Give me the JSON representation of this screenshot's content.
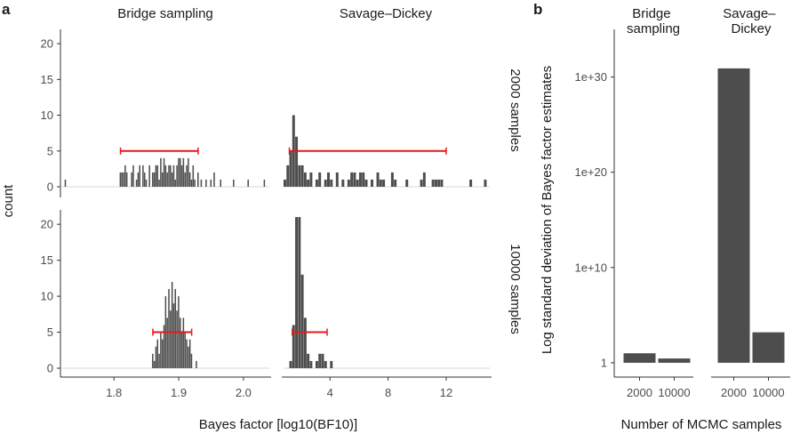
{
  "figure": {
    "panel_a_label": "a",
    "panel_b_label": "b",
    "shared_ylabel": "count",
    "shared_xlabel": "Bayes factor [log10(BF10)]"
  },
  "chart_data": [
    {
      "type": "histogram",
      "panel": "a",
      "column_titles": [
        "Bridge sampling",
        "Savage–Dickey"
      ],
      "row_titles": [
        "2000 samples",
        "10000 samples"
      ],
      "ylabel": "count",
      "xlabel": "Bayes factor [log10(BF10)]",
      "ylim": [
        0,
        22
      ],
      "yticks": [
        "0",
        "5",
        "10",
        "15",
        "20"
      ],
      "facets": [
        {
          "name": "bridge-2000",
          "method": "Bridge sampling",
          "samples": "2000 samples",
          "xlim": [
            1.72,
            2.04
          ],
          "bin_width": 0.0025,
          "error_bar": {
            "center": 1.87,
            "low": 1.81,
            "high": 1.93,
            "y": 5
          },
          "bins": [
            [
              1.725,
              1
            ],
            [
              1.81,
              2
            ],
            [
              1.8125,
              2
            ],
            [
              1.815,
              2
            ],
            [
              1.8175,
              3
            ],
            [
              1.82,
              2
            ],
            [
              1.8275,
              2
            ],
            [
              1.83,
              3
            ],
            [
              1.835,
              1
            ],
            [
              1.8375,
              2
            ],
            [
              1.84,
              3
            ],
            [
              1.845,
              3
            ],
            [
              1.8475,
              2
            ],
            [
              1.85,
              1
            ],
            [
              1.855,
              3
            ],
            [
              1.86,
              2
            ],
            [
              1.8625,
              2
            ],
            [
              1.865,
              3
            ],
            [
              1.8675,
              3
            ],
            [
              1.87,
              1
            ],
            [
              1.8725,
              4
            ],
            [
              1.875,
              2
            ],
            [
              1.8775,
              4
            ],
            [
              1.88,
              3
            ],
            [
              1.8825,
              2
            ],
            [
              1.885,
              3
            ],
            [
              1.8875,
              3
            ],
            [
              1.89,
              2
            ],
            [
              1.8925,
              3
            ],
            [
              1.895,
              1
            ],
            [
              1.8975,
              3
            ],
            [
              1.9,
              4
            ],
            [
              1.9025,
              4
            ],
            [
              1.905,
              3
            ],
            [
              1.9075,
              4
            ],
            [
              1.91,
              2
            ],
            [
              1.9125,
              3
            ],
            [
              1.915,
              4
            ],
            [
              1.9175,
              2
            ],
            [
              1.92,
              1
            ],
            [
              1.9225,
              3
            ],
            [
              1.925,
              1
            ],
            [
              1.93,
              2
            ],
            [
              1.935,
              1
            ],
            [
              1.9425,
              1
            ],
            [
              1.95,
              1
            ],
            [
              1.955,
              2
            ],
            [
              1.965,
              1
            ],
            [
              1.985,
              1
            ],
            [
              2.0075,
              1
            ],
            [
              2.0325,
              1
            ]
          ]
        },
        {
          "name": "savage-2000",
          "method": "Savage–Dickey",
          "samples": "2000 samples",
          "xlim": [
            0.8,
            15.0
          ],
          "bin_width": 0.2,
          "error_bar": {
            "center": 1.6,
            "low": 1.2,
            "high": 12.0,
            "y": 5
          },
          "bins": [
            [
              0.9,
              1
            ],
            [
              1.1,
              3
            ],
            [
              1.3,
              5
            ],
            [
              1.5,
              10
            ],
            [
              1.7,
              7
            ],
            [
              1.9,
              3
            ],
            [
              2.1,
              3
            ],
            [
              2.3,
              2
            ],
            [
              2.5,
              1
            ],
            [
              2.7,
              2
            ],
            [
              3.1,
              1
            ],
            [
              3.3,
              2
            ],
            [
              3.7,
              1
            ],
            [
              3.9,
              2
            ],
            [
              4.1,
              1
            ],
            [
              4.5,
              2
            ],
            [
              4.9,
              1
            ],
            [
              5.3,
              1
            ],
            [
              5.5,
              2
            ],
            [
              5.7,
              2
            ],
            [
              5.9,
              1
            ],
            [
              6.1,
              2
            ],
            [
              6.3,
              2
            ],
            [
              6.5,
              1
            ],
            [
              6.9,
              1
            ],
            [
              7.3,
              2
            ],
            [
              7.5,
              1
            ],
            [
              7.7,
              1
            ],
            [
              8.3,
              2
            ],
            [
              8.5,
              1
            ],
            [
              9.3,
              1
            ],
            [
              10.3,
              1
            ],
            [
              10.5,
              2
            ],
            [
              11.1,
              1
            ],
            [
              11.3,
              1
            ],
            [
              11.5,
              1
            ],
            [
              11.7,
              1
            ],
            [
              13.7,
              1
            ],
            [
              14.7,
              1
            ]
          ]
        },
        {
          "name": "bridge-10000",
          "method": "Bridge sampling",
          "samples": "10000 samples",
          "xlim": [
            1.72,
            2.04
          ],
          "bin_width": 0.0025,
          "error_bar": {
            "center": 1.89,
            "low": 1.86,
            "high": 1.92,
            "y": 5
          },
          "bins": [
            [
              1.86,
              2
            ],
            [
              1.8625,
              1
            ],
            [
              1.865,
              3
            ],
            [
              1.8675,
              4
            ],
            [
              1.87,
              2
            ],
            [
              1.8725,
              5
            ],
            [
              1.875,
              4
            ],
            [
              1.8775,
              6
            ],
            [
              1.88,
              10
            ],
            [
              1.8825,
              7
            ],
            [
              1.885,
              11
            ],
            [
              1.8875,
              8
            ],
            [
              1.89,
              12
            ],
            [
              1.8925,
              9
            ],
            [
              1.895,
              11
            ],
            [
              1.8975,
              8
            ],
            [
              1.9,
              10
            ],
            [
              1.9025,
              7
            ],
            [
              1.905,
              5
            ],
            [
              1.9075,
              7
            ],
            [
              1.91,
              5
            ],
            [
              1.9125,
              4
            ],
            [
              1.915,
              3
            ],
            [
              1.9175,
              4
            ],
            [
              1.92,
              2
            ],
            [
              1.9275,
              1
            ]
          ]
        },
        {
          "name": "savage-10000",
          "method": "Savage–Dickey",
          "samples": "10000 samples",
          "xlim": [
            0.8,
            15.0
          ],
          "bin_width": 0.2,
          "error_bar": {
            "center": 2.0,
            "low": 1.4,
            "high": 3.8,
            "y": 5
          },
          "bins": [
            [
              1.3,
              1
            ],
            [
              1.5,
              6
            ],
            [
              1.7,
              21
            ],
            [
              1.9,
              21
            ],
            [
              2.1,
              13
            ],
            [
              2.3,
              7
            ],
            [
              2.5,
              2
            ],
            [
              2.7,
              1
            ],
            [
              3.1,
              1
            ],
            [
              3.3,
              2
            ],
            [
              3.5,
              2
            ],
            [
              3.7,
              1
            ],
            [
              4.1,
              1
            ]
          ]
        }
      ],
      "x_ticks_bridge": [
        "1.8",
        "1.9",
        "2.0"
      ],
      "x_tick_values_bridge": [
        1.8,
        1.9,
        2.0
      ],
      "x_ticks_savage": [
        "4",
        "8",
        "12"
      ],
      "x_tick_values_savage": [
        4,
        8,
        12
      ],
      "bar_color": "#4d4d4d",
      "error_bar_color": "#e41a1c"
    },
    {
      "type": "bar",
      "panel": "b",
      "y_scale": "log10",
      "ylabel": "Log standard deviation of Bayes factor estimates",
      "xlabel": "Number of MCMC samples",
      "ytick_labels": [
        "1",
        "1e+10",
        "1e+20",
        "1e+30"
      ],
      "ytick_exponents": [
        0,
        10,
        20,
        30
      ],
      "ylim_exponent": [
        -1.5,
        35
      ],
      "groups": [
        {
          "title": "Bridge sampling",
          "categories": [
            "2000",
            "10000"
          ],
          "log10_values": [
            1.0,
            0.45
          ]
        },
        {
          "title": "Savage–Dickey",
          "categories": [
            "2000",
            "10000"
          ],
          "log10_values": [
            30.9,
            3.2
          ]
        }
      ],
      "bar_color": "#4d4d4d"
    }
  ]
}
